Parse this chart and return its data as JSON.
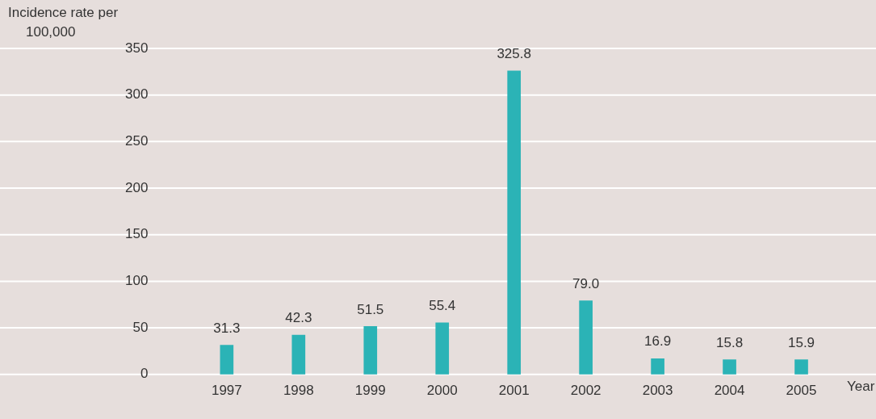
{
  "chart_data": {
    "type": "bar",
    "xlabel": "Year",
    "ylabel": "Incidence rate per\n100,000",
    "categories": [
      "1997",
      "1998",
      "1999",
      "2000",
      "2001",
      "2002",
      "2003",
      "2004",
      "2005"
    ],
    "values": [
      31.3,
      42.3,
      51.5,
      55.4,
      325.8,
      79.0,
      16.9,
      15.8,
      15.9
    ],
    "value_labels": [
      "31.3",
      "42.3",
      "51.5",
      "55.4",
      "325.8",
      "79.0",
      "16.9",
      "15.8",
      "15.9"
    ],
    "color": "#2bb3b6",
    "ylim": [
      0,
      350
    ],
    "yticks": [
      0,
      50,
      100,
      150,
      200,
      250,
      300,
      350
    ],
    "grid": "y"
  }
}
